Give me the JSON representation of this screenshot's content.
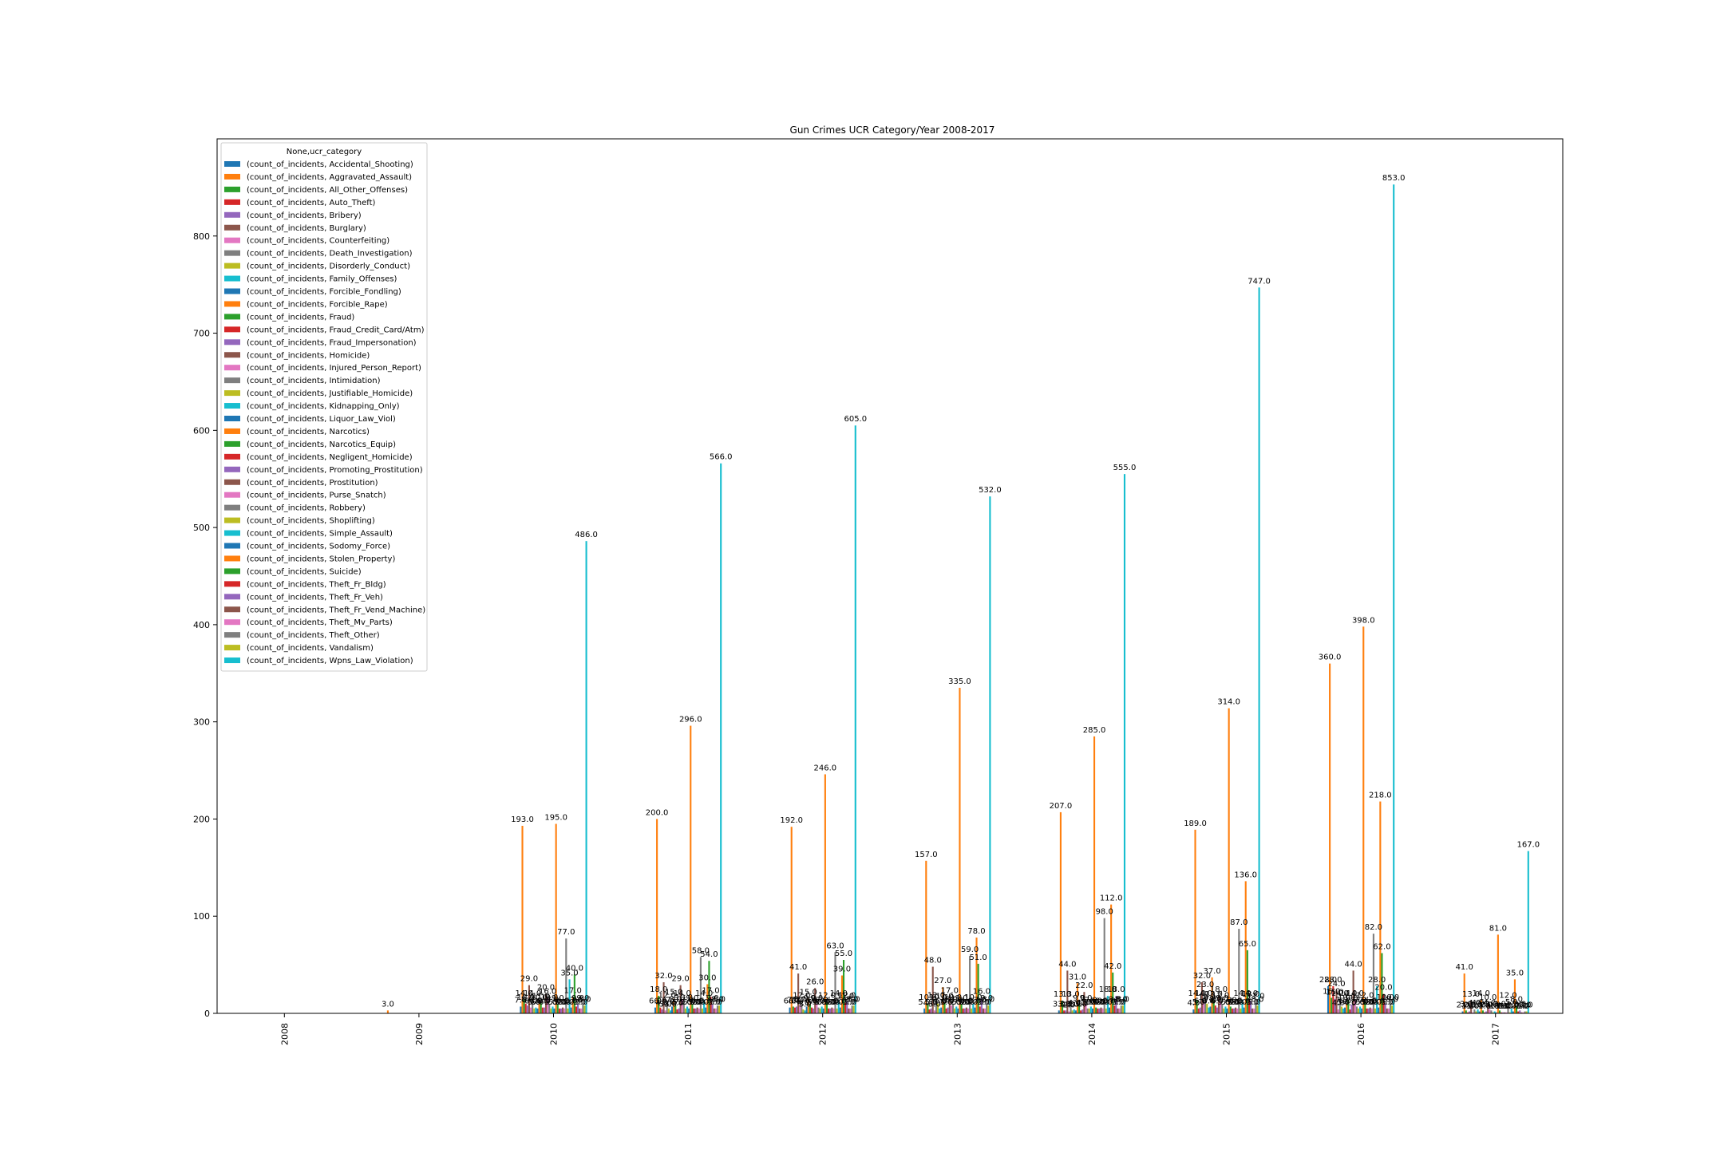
{
  "chart_data": {
    "type": "bar",
    "title": "Gun Crimes UCR Category/Year 2008-2017",
    "xlabel": "",
    "ylabel": "",
    "ylim": [
      0,
      900
    ],
    "yticks": [
      0,
      100,
      200,
      300,
      400,
      500,
      600,
      700,
      800
    ],
    "grid": false,
    "legend": {
      "title": "None,ucr_category",
      "placement": "top-left"
    },
    "categories": [
      "2008",
      "2009",
      "2010",
      "2011",
      "2012",
      "2013",
      "2014",
      "2015",
      "2016",
      "2017"
    ],
    "colors": [
      "#1f77b4",
      "#ff7f0e",
      "#2ca02c",
      "#d62728",
      "#9467bd",
      "#8c564b",
      "#e377c2",
      "#7f7f7f",
      "#bcbd22",
      "#17becf"
    ],
    "series": [
      {
        "name": "(count_of_incidents, Accidental_Shooting)",
        "values": [
          null,
          null,
          7,
          6,
          6,
          5,
          3,
          4,
          28,
          2
        ]
      },
      {
        "name": "(count_of_incidents, Aggravated_Assault)",
        "values": [
          null,
          3,
          193,
          200,
          192,
          157,
          207,
          189,
          360,
          41
        ]
      },
      {
        "name": "(count_of_incidents, All_Other_Offenses)",
        "values": [
          null,
          null,
          14,
          18,
          7,
          10,
          13,
          14,
          16,
          3
        ]
      },
      {
        "name": "(count_of_incidents, Auto_Theft)",
        "values": [
          null,
          null,
          10,
          6,
          6,
          4,
          3,
          5,
          28,
          1
        ]
      },
      {
        "name": "(count_of_incidents, Bribery)",
        "values": [
          null,
          null,
          8,
          4,
          7,
          5,
          3,
          6,
          15,
          2
        ]
      },
      {
        "name": "(count_of_incidents, Burglary)",
        "values": [
          null,
          null,
          29,
          32,
          41,
          48,
          44,
          32,
          24,
          13
        ]
      },
      {
        "name": "(count_of_incidents, Counterfeiting)",
        "values": [
          null,
          null,
          6,
          3,
          8,
          3,
          2,
          14,
          4,
          1
        ]
      },
      {
        "name": "(count_of_incidents, Death_Investigation)",
        "values": [
          null,
          null,
          14,
          12,
          12,
          12,
          13,
          23,
          14,
          4
        ]
      },
      {
        "name": "(count_of_incidents, Disorderly_Conduct)",
        "values": [
          null,
          null,
          5,
          5,
          4,
          10,
          3,
          10,
          7,
          2
        ]
      },
      {
        "name": "(count_of_incidents, Family_Offenses)",
        "values": [
          null,
          null,
          6,
          3,
          3,
          5,
          4,
          6,
          5,
          4
        ]
      },
      {
        "name": "(count_of_incidents, Forcible_Fondling)",
        "values": [
          null,
          null,
          5,
          7,
          7,
          6,
          3,
          7,
          6,
          2
        ]
      },
      {
        "name": "(count_of_incidents, Forcible_Rape)",
        "values": [
          null,
          null,
          10,
          15,
          15,
          27,
          31,
          37,
          10,
          14
        ]
      },
      {
        "name": "(count_of_incidents, Fraud)",
        "values": [
          null,
          null,
          11,
          8,
          9,
          11,
          9,
          13,
          14,
          3
        ]
      },
      {
        "name": "(count_of_incidents, Fraud_Credit_Card/Atm)",
        "values": [
          null,
          null,
          6,
          4,
          6,
          5,
          3,
          8,
          4,
          1
        ]
      },
      {
        "name": "(count_of_incidents, Fraud_Impersonation)",
        "values": [
          null,
          null,
          6,
          5,
          5,
          6,
          4,
          6,
          9,
          2
        ]
      },
      {
        "name": "(count_of_incidents, Homicide)",
        "values": [
          null,
          null,
          20,
          29,
          26,
          17,
          22,
          18,
          44,
          10
        ]
      },
      {
        "name": "(count_of_incidents, Injured_Person_Report)",
        "values": [
          null,
          null,
          16,
          14,
          9,
          8,
          9,
          12,
          14,
          4
        ]
      },
      {
        "name": "(count_of_incidents, Intimidation)",
        "values": [
          null,
          null,
          10,
          10,
          6,
          10,
          5,
          9,
          7,
          3
        ]
      },
      {
        "name": "(count_of_incidents, Justifiable_Homicide)",
        "values": [
          null,
          null,
          5,
          5,
          5,
          5,
          5,
          5,
          5,
          1
        ]
      },
      {
        "name": "(count_of_incidents, Kidnapping_Only)",
        "values": [
          null,
          null,
          7,
          7,
          7,
          7,
          7,
          7,
          7,
          2
        ]
      },
      {
        "name": "(count_of_incidents, Liquor_Law_Viol)",
        "values": [
          null,
          null,
          5,
          5,
          5,
          5,
          5,
          5,
          5,
          1
        ]
      },
      {
        "name": "(count_of_incidents, Narcotics)",
        "values": [
          null,
          null,
          195,
          296,
          246,
          335,
          285,
          314,
          398,
          81
        ]
      },
      {
        "name": "(count_of_incidents, Narcotics_Equip)",
        "values": [
          null,
          null,
          9,
          9,
          12,
          9,
          6,
          7,
          12,
          3
        ]
      },
      {
        "name": "(count_of_incidents, Negligent_Homicide)",
        "values": [
          null,
          null,
          5,
          5,
          5,
          5,
          5,
          5,
          5,
          1
        ]
      },
      {
        "name": "(count_of_incidents, Promoting_Prostitution)",
        "values": [
          null,
          null,
          5,
          5,
          5,
          5,
          5,
          5,
          5,
          1
        ]
      },
      {
        "name": "(count_of_incidents, Prostitution)",
        "values": [
          null,
          null,
          6,
          6,
          6,
          6,
          6,
          6,
          6,
          1
        ]
      },
      {
        "name": "(count_of_incidents, Purse_Snatch)",
        "values": [
          null,
          null,
          5,
          5,
          5,
          5,
          5,
          5,
          5,
          1
        ]
      },
      {
        "name": "(count_of_incidents, Robbery)",
        "values": [
          null,
          null,
          77,
          58,
          63,
          59,
          98,
          87,
          82,
          12
        ]
      },
      {
        "name": "(count_of_incidents, Shoplifting)",
        "values": [
          null,
          null,
          5,
          5,
          5,
          5,
          5,
          5,
          5,
          1
        ]
      },
      {
        "name": "(count_of_incidents, Simple_Assault)",
        "values": [
          null,
          null,
          35,
          14,
          14,
          10,
          18,
          14,
          28,
          5
        ]
      },
      {
        "name": "(count_of_incidents, Sodomy_Force)",
        "values": [
          null,
          null,
          6,
          6,
          6,
          6,
          6,
          6,
          6,
          2
        ]
      },
      {
        "name": "(count_of_incidents, Stolen_Property)",
        "values": [
          null,
          null,
          17,
          30,
          39,
          78,
          112,
          136,
          218,
          35
        ]
      },
      {
        "name": "(count_of_incidents, Suicide)",
        "values": [
          null,
          null,
          40,
          54,
          55,
          51,
          42,
          65,
          62,
          8
        ]
      },
      {
        "name": "(count_of_incidents, Theft_Fr_Bldg)",
        "values": [
          null,
          null,
          7,
          17,
          11,
          7,
          8,
          14,
          20,
          2
        ]
      },
      {
        "name": "(count_of_incidents, Theft_Fr_Veh)",
        "values": [
          null,
          null,
          9,
          9,
          12,
          16,
          18,
          13,
          10,
          3
        ]
      },
      {
        "name": "(count_of_incidents, Theft_Fr_Vend_Machine)",
        "values": [
          null,
          null,
          5,
          5,
          5,
          5,
          5,
          5,
          5,
          1
        ]
      },
      {
        "name": "(count_of_incidents, Theft_Mv_Parts)",
        "values": [
          null,
          null,
          5,
          5,
          5,
          5,
          5,
          5,
          5,
          1
        ]
      },
      {
        "name": "(count_of_incidents, Theft_Other)",
        "values": [
          null,
          null,
          9,
          8,
          8,
          9,
          8,
          11,
          10,
          2
        ]
      },
      {
        "name": "(count_of_incidents, Vandalism)",
        "values": [
          null,
          null,
          8,
          8,
          8,
          8,
          8,
          8,
          8,
          2
        ]
      },
      {
        "name": "(count_of_incidents, Wpns_Law_Violation)",
        "values": [
          null,
          null,
          486,
          566,
          605,
          532,
          555,
          747,
          853,
          167
        ]
      }
    ]
  }
}
